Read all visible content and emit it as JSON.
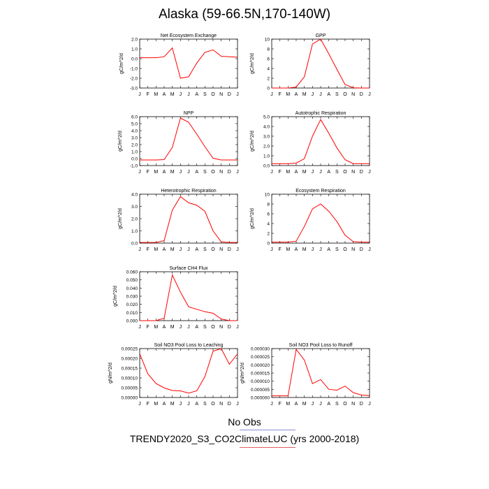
{
  "title": "Alaska (59-66.5N,170-140W)",
  "legend": {
    "obs_label": "No Obs",
    "obs_color": "#8a8ad8",
    "model_label": "TRENDY2020_S3_CO2ClimateLUC (yrs 2000-2018)",
    "model_color": "#e06060"
  },
  "line_color": "#ff0000",
  "chart_data": [
    {
      "type": "line",
      "title": "Net Ecosystem Exchange",
      "ylabel": "gC/m^2/d",
      "categories": [
        "J",
        "F",
        "M",
        "A",
        "M",
        "J",
        "J",
        "A",
        "S",
        "O",
        "N",
        "D",
        "J"
      ],
      "values": [
        0.1,
        0.1,
        0.1,
        0.2,
        1.1,
        -2.0,
        -1.85,
        -0.45,
        0.65,
        0.9,
        0.25,
        0.2,
        0.15
      ],
      "ylim": [
        -3.0,
        2.0
      ],
      "yticks": [
        "2.0",
        "1.0",
        "0.0",
        "-1.0",
        "-2.0",
        "-3.0"
      ]
    },
    {
      "type": "line",
      "title": "GPP",
      "ylabel": "gC/m^2/d",
      "categories": [
        "J",
        "F",
        "M",
        "A",
        "M",
        "J",
        "J",
        "A",
        "S",
        "O",
        "N",
        "D",
        "J"
      ],
      "values": [
        0,
        0,
        0,
        0.2,
        2.3,
        9.0,
        10.0,
        7.0,
        3.8,
        0.7,
        0.05,
        0,
        0
      ],
      "ylim": [
        0,
        10
      ],
      "yticks": [
        "10",
        "8",
        "6",
        "4",
        "2",
        "0"
      ]
    },
    {
      "type": "line",
      "title": "NPP",
      "ylabel": "gC/m^2/d",
      "categories": [
        "J",
        "F",
        "M",
        "A",
        "M",
        "J",
        "J",
        "A",
        "S",
        "O",
        "N",
        "D",
        "J"
      ],
      "values": [
        -0.2,
        -0.2,
        -0.2,
        -0.15,
        1.6,
        5.8,
        5.2,
        3.5,
        1.7,
        0.05,
        -0.2,
        -0.2,
        -0.2
      ],
      "ylim": [
        -1.0,
        6.0
      ],
      "yticks": [
        "6.0",
        "5.0",
        "4.0",
        "3.0",
        "2.0",
        "1.0",
        "0.0",
        "-1.0"
      ]
    },
    {
      "type": "line",
      "title": "Autotrophic Respiration",
      "ylabel": "gC/m^2/d",
      "categories": [
        "J",
        "F",
        "M",
        "A",
        "M",
        "J",
        "J",
        "A",
        "S",
        "O",
        "N",
        "D",
        "J"
      ],
      "values": [
        0.2,
        0.2,
        0.2,
        0.25,
        0.7,
        3.0,
        4.7,
        3.3,
        1.8,
        0.6,
        0.2,
        0.2,
        0.2
      ],
      "ylim": [
        0,
        5.0
      ],
      "yticks": [
        "5.0",
        "4.0",
        "3.0",
        "2.0",
        "1.0",
        "0.0"
      ]
    },
    {
      "type": "line",
      "title": "Heterotrophic Respiration",
      "ylabel": "gC/m^2/d",
      "categories": [
        "J",
        "F",
        "M",
        "A",
        "M",
        "J",
        "J",
        "A",
        "S",
        "O",
        "N",
        "D",
        "J"
      ],
      "values": [
        0.05,
        0.05,
        0.05,
        0.2,
        2.7,
        3.8,
        3.3,
        3.1,
        2.6,
        1.0,
        0.1,
        0.05,
        0.05
      ],
      "ylim": [
        0,
        4.0
      ],
      "yticks": [
        "4.0",
        "3.0",
        "2.0",
        "1.0",
        "0.0"
      ]
    },
    {
      "type": "line",
      "title": "Ecosystem Respiration",
      "ylabel": "gC/m^2/d",
      "categories": [
        "J",
        "F",
        "M",
        "A",
        "M",
        "J",
        "J",
        "A",
        "S",
        "O",
        "N",
        "D",
        "J"
      ],
      "values": [
        0.2,
        0.2,
        0.2,
        0.4,
        3.4,
        7.0,
        8.0,
        6.5,
        4.4,
        1.6,
        0.3,
        0.2,
        0.2
      ],
      "ylim": [
        0,
        10
      ],
      "yticks": [
        "10",
        "8",
        "6",
        "4",
        "2",
        "0"
      ]
    },
    {
      "type": "line",
      "title": "Surface CH4 Flux",
      "ylabel": "gC/m^2/d",
      "categories": [
        "J",
        "F",
        "M",
        "A",
        "M",
        "J",
        "J",
        "A",
        "S",
        "O",
        "N",
        "D",
        "J"
      ],
      "values": [
        0,
        0,
        0,
        0.003,
        0.056,
        0.035,
        0.017,
        0.014,
        0.011,
        0.009,
        0.002,
        0,
        0
      ],
      "ylim": [
        0,
        0.06
      ],
      "yticks": [
        "0.060",
        "0.050",
        "0.040",
        "0.030",
        "0.020",
        "0.010",
        "0.000"
      ]
    },
    {
      "type": "line",
      "title": "Soil NO3 Pool Loss to Leaching",
      "ylabel": "gN/m^2/d",
      "categories": [
        "J",
        "F",
        "M",
        "A",
        "M",
        "J",
        "J",
        "A",
        "S",
        "O",
        "N",
        "D",
        "J"
      ],
      "values": [
        0.00025,
        0.000135,
        8e-05,
        5.5e-05,
        4e-05,
        3.8e-05,
        2.5e-05,
        3.8e-05,
        0.00012,
        0.000265,
        0.00028,
        0.00019,
        0.00025
      ],
      "ylim": [
        0,
        0.00028
      ],
      "yticks": [
        "0.00025",
        "0.00020",
        "0.00015",
        "0.00010",
        "0.00005",
        "0.00000"
      ]
    },
    {
      "type": "line",
      "title": "Soil NO3 Pool Loss to Runoff",
      "ylabel": "gN/m^2/d",
      "categories": [
        "J",
        "F",
        "M",
        "A",
        "M",
        "J",
        "J",
        "A",
        "S",
        "O",
        "N",
        "D",
        "J"
      ],
      "values": [
        1e-06,
        1e-06,
        1e-06,
        2.95e-05,
        2.3e-05,
        8.5e-06,
        1.1e-05,
        5e-06,
        4.5e-06,
        7e-06,
        3e-06,
        1.5e-06,
        1.2e-06
      ],
      "ylim": [
        0,
        3e-05
      ],
      "yticks": [
        "0.000030",
        "0.000025",
        "0.000020",
        "0.000015",
        "0.000010",
        "0.000005",
        "0.000000"
      ]
    }
  ]
}
